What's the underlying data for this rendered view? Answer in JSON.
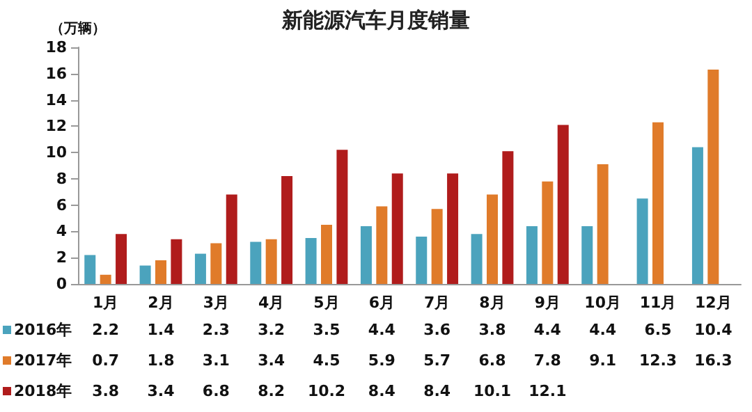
{
  "chart_data": {
    "type": "bar",
    "title": "新能源汽车月度销量",
    "ylabel": "（万辆）",
    "categories": [
      "1月",
      "2月",
      "3月",
      "4月",
      "5月",
      "6月",
      "7月",
      "8月",
      "9月",
      "10月",
      "11月",
      "12月"
    ],
    "series": [
      {
        "name": "2016年",
        "color": "#4ba3bd",
        "values": [
          2.2,
          1.4,
          2.3,
          3.2,
          3.5,
          4.4,
          3.6,
          3.8,
          4.4,
          4.4,
          6.5,
          10.4
        ]
      },
      {
        "name": "2017年",
        "color": "#e07b2a",
        "values": [
          0.7,
          1.8,
          3.1,
          3.4,
          4.5,
          5.9,
          5.7,
          6.8,
          7.8,
          9.1,
          12.3,
          16.3
        ]
      },
      {
        "name": "2018年",
        "color": "#b01c1c",
        "values": [
          3.8,
          3.4,
          6.8,
          8.2,
          10.2,
          8.4,
          8.4,
          10.1,
          12.1,
          null,
          null,
          null
        ]
      }
    ],
    "ylim": [
      0,
      18
    ],
    "yticks": [
      0,
      2,
      4,
      6,
      8,
      10,
      12,
      14,
      16,
      18
    ],
    "grid": false,
    "data_labels": true,
    "legend": "bottom"
  }
}
